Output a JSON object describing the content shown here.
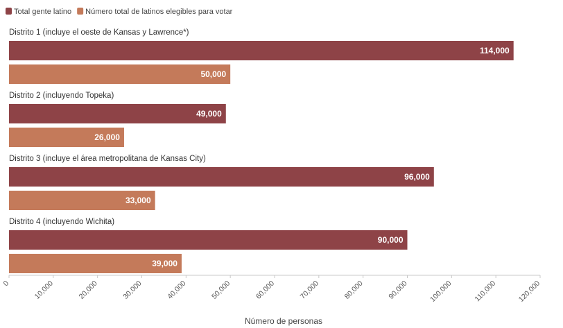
{
  "chart_data": {
    "type": "bar",
    "orientation": "horizontal",
    "title": "",
    "xlabel": "Número de personas",
    "ylabel": "",
    "xlim": [
      0,
      120000
    ],
    "grid": false,
    "legend_position": "top-left",
    "categories": [
      "Distrito 1 (incluye el oeste de Kansas y Lawrence*)",
      "Distrito 2 (incluyendo Topeka)",
      "Distrito 3 (incluye el área metropolitana de Kansas City)",
      "Distrito 4 (incluyendo Wichita)"
    ],
    "series": [
      {
        "name": "Total gente latino",
        "color": "#8e4347",
        "values": [
          114000,
          49000,
          96000,
          90000
        ],
        "labels": [
          "114,000",
          "49,000",
          "96,000",
          "90,000"
        ]
      },
      {
        "name": "Número total de latinos elegibles para votar",
        "color": "#c47a5a",
        "values": [
          50000,
          26000,
          33000,
          39000
        ],
        "labels": [
          "50,000",
          "26,000",
          "33,000",
          "39,000"
        ]
      }
    ],
    "tick_values": [
      0,
      10000,
      20000,
      30000,
      40000,
      50000,
      60000,
      70000,
      80000,
      90000,
      100000,
      110000,
      120000
    ],
    "tick_labels": [
      "0",
      "10,000",
      "20,000",
      "30,000",
      "40,000",
      "50,000",
      "60,000",
      "70,000",
      "80,000",
      "90,000",
      "100,000",
      "110,000",
      "120,000"
    ]
  }
}
